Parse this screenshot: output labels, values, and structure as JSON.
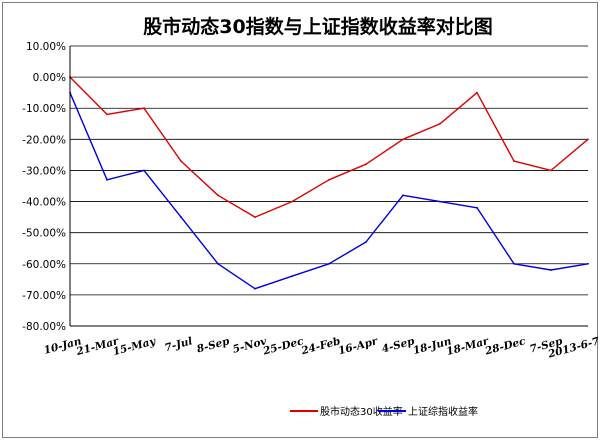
{
  "chart_data": {
    "type": "line",
    "title": "股市动态30指数与上证指数收益率对比图",
    "xlabel": "",
    "ylabel": "",
    "ylim": [
      -0.8,
      0.1
    ],
    "y_ticks": [
      "10.00%",
      "0.00%",
      "-10.00%",
      "-20.00%",
      "-30.00%",
      "-40.00%",
      "-50.00%",
      "-60.00%",
      "-70.00%",
      "-80.00%"
    ],
    "x_ticks": [
      "10-Jan",
      "21-Mar",
      "15-May",
      "7-Jul",
      "8-Sep",
      "5-Nov",
      "25-Dec",
      "24-Feb",
      "16-Apr",
      "4-Sep",
      "18-Jun",
      "18-Mar",
      "28-Dec",
      "7-Sep",
      "2013-6-7"
    ],
    "grid": true,
    "legend_position": "bottom",
    "x": [
      0,
      1,
      2,
      3,
      4,
      5,
      6,
      7,
      8,
      9,
      10,
      11,
      12,
      13,
      14
    ],
    "series": [
      {
        "name": "股市动态30收益率",
        "color": "#e00000",
        "values": [
          0.0,
          -0.12,
          -0.1,
          -0.27,
          -0.38,
          -0.45,
          -0.4,
          -0.33,
          -0.28,
          -0.2,
          -0.15,
          -0.05,
          -0.27,
          -0.3,
          -0.2
        ]
      },
      {
        "name": "上证综指收益率",
        "color": "#0000e0",
        "values": [
          -0.05,
          -0.33,
          -0.3,
          -0.45,
          -0.6,
          -0.68,
          -0.64,
          -0.6,
          -0.53,
          -0.38,
          -0.4,
          -0.42,
          -0.6,
          -0.62,
          -0.6
        ]
      }
    ]
  }
}
